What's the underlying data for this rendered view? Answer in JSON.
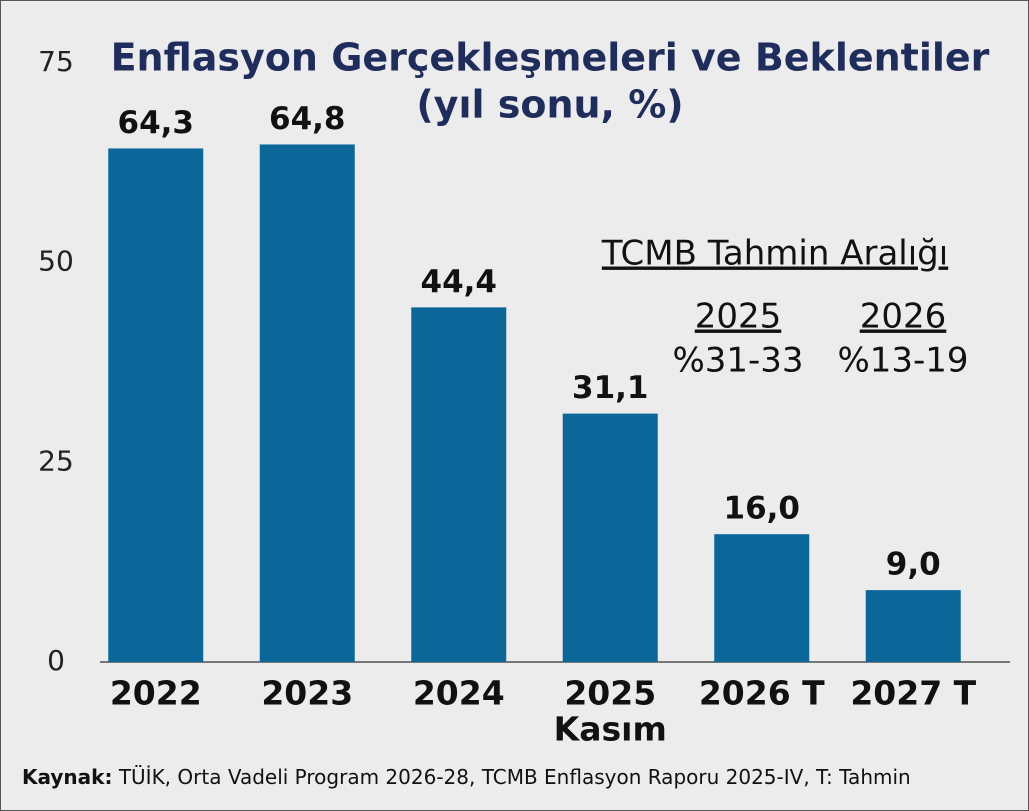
{
  "chart_data": {
    "type": "bar",
    "title": "Enflasyon Gerçekleşmeleri ve Beklentiler",
    "subtitle": "(yıl sonu, %)",
    "categories": [
      "2022",
      "2023",
      "2024",
      "2025",
      "2026 T",
      "2027 T"
    ],
    "category_notes": [
      null,
      null,
      null,
      "Kasım",
      null,
      null
    ],
    "values": [
      64.3,
      64.8,
      44.4,
      31.1,
      16.0,
      9.0
    ],
    "value_labels": [
      "64,3",
      "64,8",
      "44,4",
      "31,1",
      "16,0",
      "9,0"
    ],
    "color": "#0b6699",
    "ylim": [
      0,
      75
    ],
    "yticks": [
      0,
      25,
      50,
      75
    ],
    "grid": false,
    "forecast_box": {
      "title": "TCMB Tahmin Aralığı",
      "columns": [
        {
          "year": "2025",
          "range": "%31-33"
        },
        {
          "year": "2026",
          "range": "%13-19"
        }
      ]
    },
    "source": {
      "label": "Kaynak:",
      "text": "TÜİK, Orta Vadeli Program 2026-28, TCMB Enflasyon Raporu 2025-IV,  T: Tahmin"
    }
  }
}
